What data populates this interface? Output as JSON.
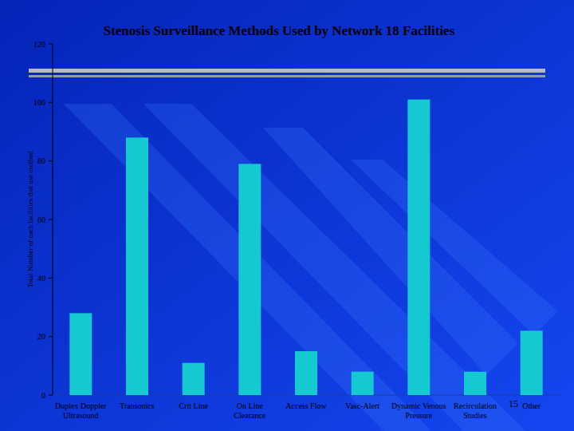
{
  "chart_data": {
    "type": "bar",
    "title": "Stenosis Surveillance Methods Used by Network 18 Facilities",
    "y_label": "Total Number of each facilities that use method",
    "categories": [
      "Duplex Doppler Ultrasound",
      "Transonics",
      "Crit Line",
      "On Line Clearance",
      "Access Flow",
      "Vasc-Alert",
      "Dynamic Venous Pressure",
      "Recirculation Studies",
      "Other"
    ],
    "values": [
      28,
      88,
      11,
      79,
      15,
      8,
      101,
      8,
      22
    ],
    "color": "#14c9cf",
    "ylim": [
      0,
      120
    ],
    "yticks": [
      0,
      20,
      40,
      60,
      80,
      100,
      120
    ],
    "grid": false
  },
  "slide": {
    "number": "15"
  }
}
